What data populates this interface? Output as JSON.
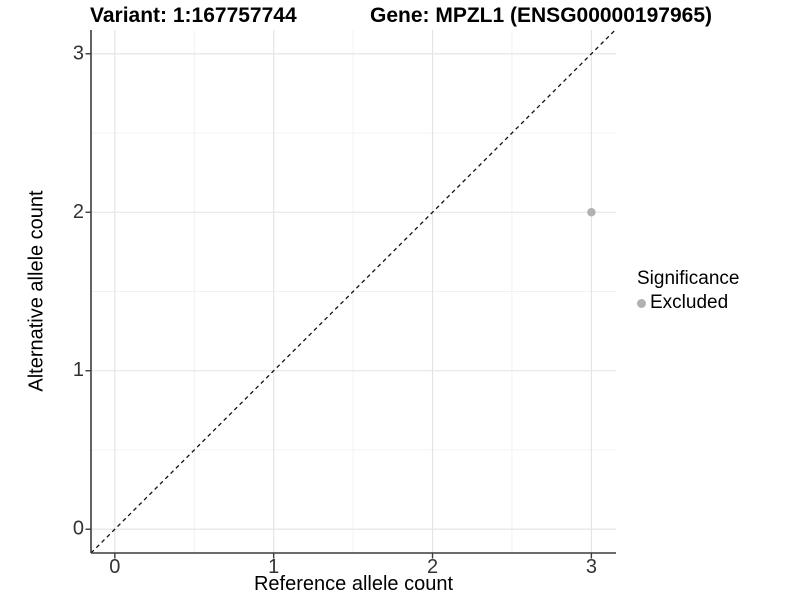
{
  "header": {
    "title_left": "Variant: 1:167757744",
    "title_right": "Gene: MPZL1 (ENSG00000197965)"
  },
  "chart_data": {
    "type": "scatter",
    "xlabel": "Reference allele count",
    "ylabel": "Alternative allele count",
    "xlim": [
      -0.15,
      3.155
    ],
    "ylim": [
      -0.15,
      3.15
    ],
    "xticks": [
      0,
      1,
      2,
      3
    ],
    "yticks": [
      0,
      1,
      2,
      3
    ],
    "minor_gridlines_x": [
      0.5,
      1.5,
      2.5
    ],
    "minor_gridlines_y": [
      0.5,
      1.5,
      2.5
    ],
    "grid": "on",
    "series": [
      {
        "name": "Excluded",
        "color": "#b1b1b1",
        "points": [
          {
            "x": 3,
            "y": 2
          }
        ]
      }
    ],
    "reference_line": {
      "type": "identity",
      "equation": "y = x",
      "style": "dashed",
      "color": "#111111"
    },
    "legend": {
      "title": "Significance",
      "position": "right",
      "entries": [
        {
          "label": "Excluded",
          "marker": "dot",
          "color": "#b1b1b1"
        }
      ]
    }
  },
  "colors": {
    "background": "#ffffff",
    "grid_major": "#e3e3e3",
    "grid_minor": "#f1f1f1",
    "axis_line": "#3c3c3c",
    "tick_mark": "#3c3c3c",
    "tick_label": "#333333"
  }
}
